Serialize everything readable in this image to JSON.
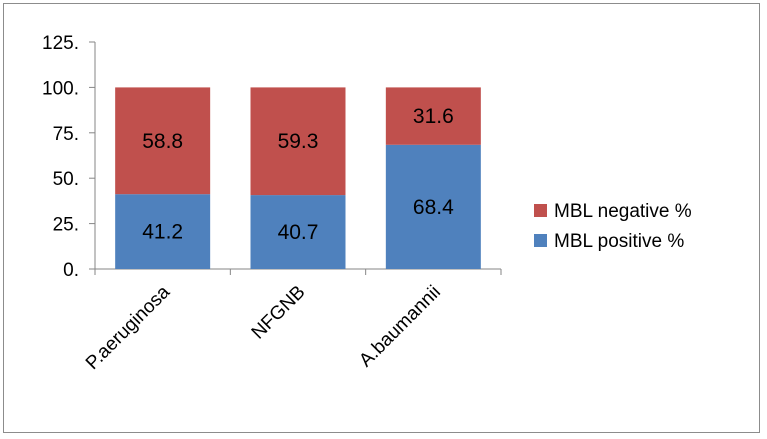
{
  "chart_data": {
    "type": "bar",
    "stacked": true,
    "categories": [
      "P.aeruginosa",
      "NFGNB",
      "A.baumannii"
    ],
    "series": [
      {
        "name": "MBL positive %",
        "values": [
          41.2,
          40.7,
          68.4
        ],
        "color": "#4f81bd"
      },
      {
        "name": "MBL negative %",
        "values": [
          58.8,
          59.3,
          31.6
        ],
        "color": "#c0504d"
      }
    ],
    "y_ticks": [
      "0.",
      "25.",
      "50.",
      "75.",
      "100.",
      "125."
    ],
    "ylim": [
      0,
      125
    ],
    "title": "",
    "xlabel": "",
    "ylabel": "",
    "grid": false,
    "legend_position": "right"
  }
}
